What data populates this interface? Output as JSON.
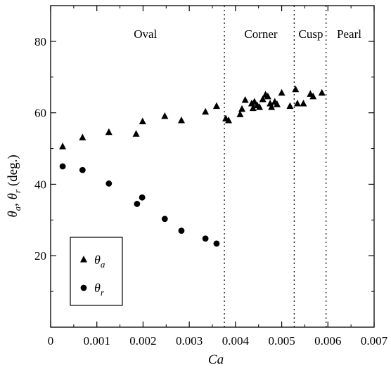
{
  "chart_data": {
    "type": "scatter",
    "xlabel": "Ca",
    "ylabel": "θ_a, θ_r (deg.)",
    "xlim": [
      0,
      0.007
    ],
    "ylim": [
      0,
      90
    ],
    "x_ticks": [
      0,
      0.001,
      0.002,
      0.003,
      0.004,
      0.005,
      0.006,
      0.007
    ],
    "x_tick_labels": [
      "0",
      "0.001",
      "0.002",
      "0.003",
      "0.004",
      "0.005",
      "0.006",
      "0.007"
    ],
    "y_ticks": [
      20,
      40,
      60,
      80
    ],
    "y_tick_labels": [
      "20",
      "40",
      "60",
      "80"
    ],
    "grid": false,
    "legend_position": "bottom-left",
    "regions": [
      {
        "label": "Oval",
        "x_center": 0.00205
      },
      {
        "label": "Corner",
        "x_center": 0.00455
      },
      {
        "label": "Cusp",
        "x_center": 0.00563
      },
      {
        "label": "Pearl",
        "x_center": 0.00646
      }
    ],
    "boundaries": [
      0.00376,
      0.00527,
      0.00596
    ],
    "series": [
      {
        "name": "θ_a",
        "marker": "triangle",
        "points": [
          [
            0.00026,
            50.5
          ],
          [
            0.00069,
            53.0
          ],
          [
            0.00126,
            54.5
          ],
          [
            0.00185,
            54.0
          ],
          [
            0.00199,
            57.5
          ],
          [
            0.00247,
            59.0
          ],
          [
            0.00283,
            57.8
          ],
          [
            0.00335,
            60.2
          ],
          [
            0.00359,
            61.8
          ],
          [
            0.00379,
            58.3
          ],
          [
            0.00385,
            57.8
          ],
          [
            0.0041,
            59.5
          ],
          [
            0.00414,
            61.0
          ],
          [
            0.00421,
            63.5
          ],
          [
            0.00435,
            62.5
          ],
          [
            0.00438,
            61.2
          ],
          [
            0.00441,
            63.0
          ],
          [
            0.00447,
            62.0
          ],
          [
            0.00452,
            61.5
          ],
          [
            0.00459,
            63.7
          ],
          [
            0.00465,
            65.0
          ],
          [
            0.0047,
            64.5
          ],
          [
            0.00475,
            62.5
          ],
          [
            0.00478,
            61.5
          ],
          [
            0.00485,
            63.0
          ],
          [
            0.0049,
            62.3
          ],
          [
            0.005,
            65.5
          ],
          [
            0.00518,
            61.8
          ],
          [
            0.0053,
            66.5
          ],
          [
            0.00534,
            62.5
          ],
          [
            0.00547,
            62.5
          ],
          [
            0.00562,
            65.2
          ],
          [
            0.00568,
            64.5
          ],
          [
            0.00587,
            65.5
          ]
        ]
      },
      {
        "name": "θ_r",
        "marker": "circle",
        "points": [
          [
            0.00026,
            45.0
          ],
          [
            0.00069,
            44.0
          ],
          [
            0.00126,
            40.2
          ],
          [
            0.00187,
            34.5
          ],
          [
            0.00198,
            36.3
          ],
          [
            0.00247,
            30.3
          ],
          [
            0.00283,
            27.0
          ],
          [
            0.00335,
            24.8
          ],
          [
            0.00359,
            23.4
          ]
        ]
      }
    ],
    "legend": [
      {
        "symbol": "triangle",
        "base": "θ",
        "sub": "a"
      },
      {
        "symbol": "circle",
        "base": "θ",
        "sub": "r"
      }
    ],
    "axis_titles": {
      "x": "Ca",
      "y": {
        "a_base": "θ",
        "a_sub": "a",
        "sep": ", ",
        "r_base": "θ",
        "r_sub": "r",
        "unit": " (deg.)"
      }
    }
  }
}
